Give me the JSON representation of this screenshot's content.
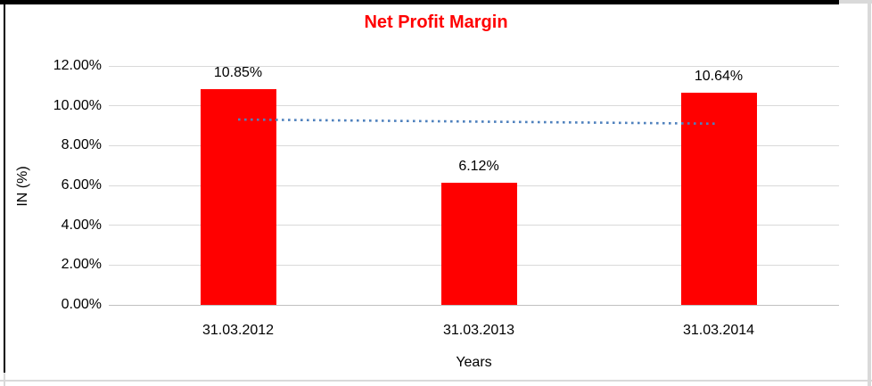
{
  "chart_data": {
    "type": "bar",
    "title": "Net Profit Margin",
    "categories": [
      "31.03.2012",
      "31.03.2013",
      "31.03.2014"
    ],
    "values": [
      10.85,
      6.12,
      10.64
    ],
    "value_labels": [
      "10.85%",
      "6.12%",
      "10.64%"
    ],
    "xlabel": "Years",
    "ylabel": "IN (%)",
    "ylim": [
      0,
      12
    ],
    "ytick_values": [
      0,
      2,
      4,
      6,
      8,
      10,
      12
    ],
    "ytick_labels": [
      "0.00%",
      "2.00%",
      "4.00%",
      "6.00%",
      "8.00%",
      "10.00%",
      "12.00%"
    ],
    "grid": "horizontal",
    "legend": "none",
    "bar_color": "#ff0000",
    "title_color": "#ff0000",
    "gridline_color": "#d9d9d9",
    "trendline": {
      "type": "linear",
      "style": "dotted",
      "color": "#4f81bd",
      "start_value": 9.31,
      "end_value": 9.1
    }
  }
}
